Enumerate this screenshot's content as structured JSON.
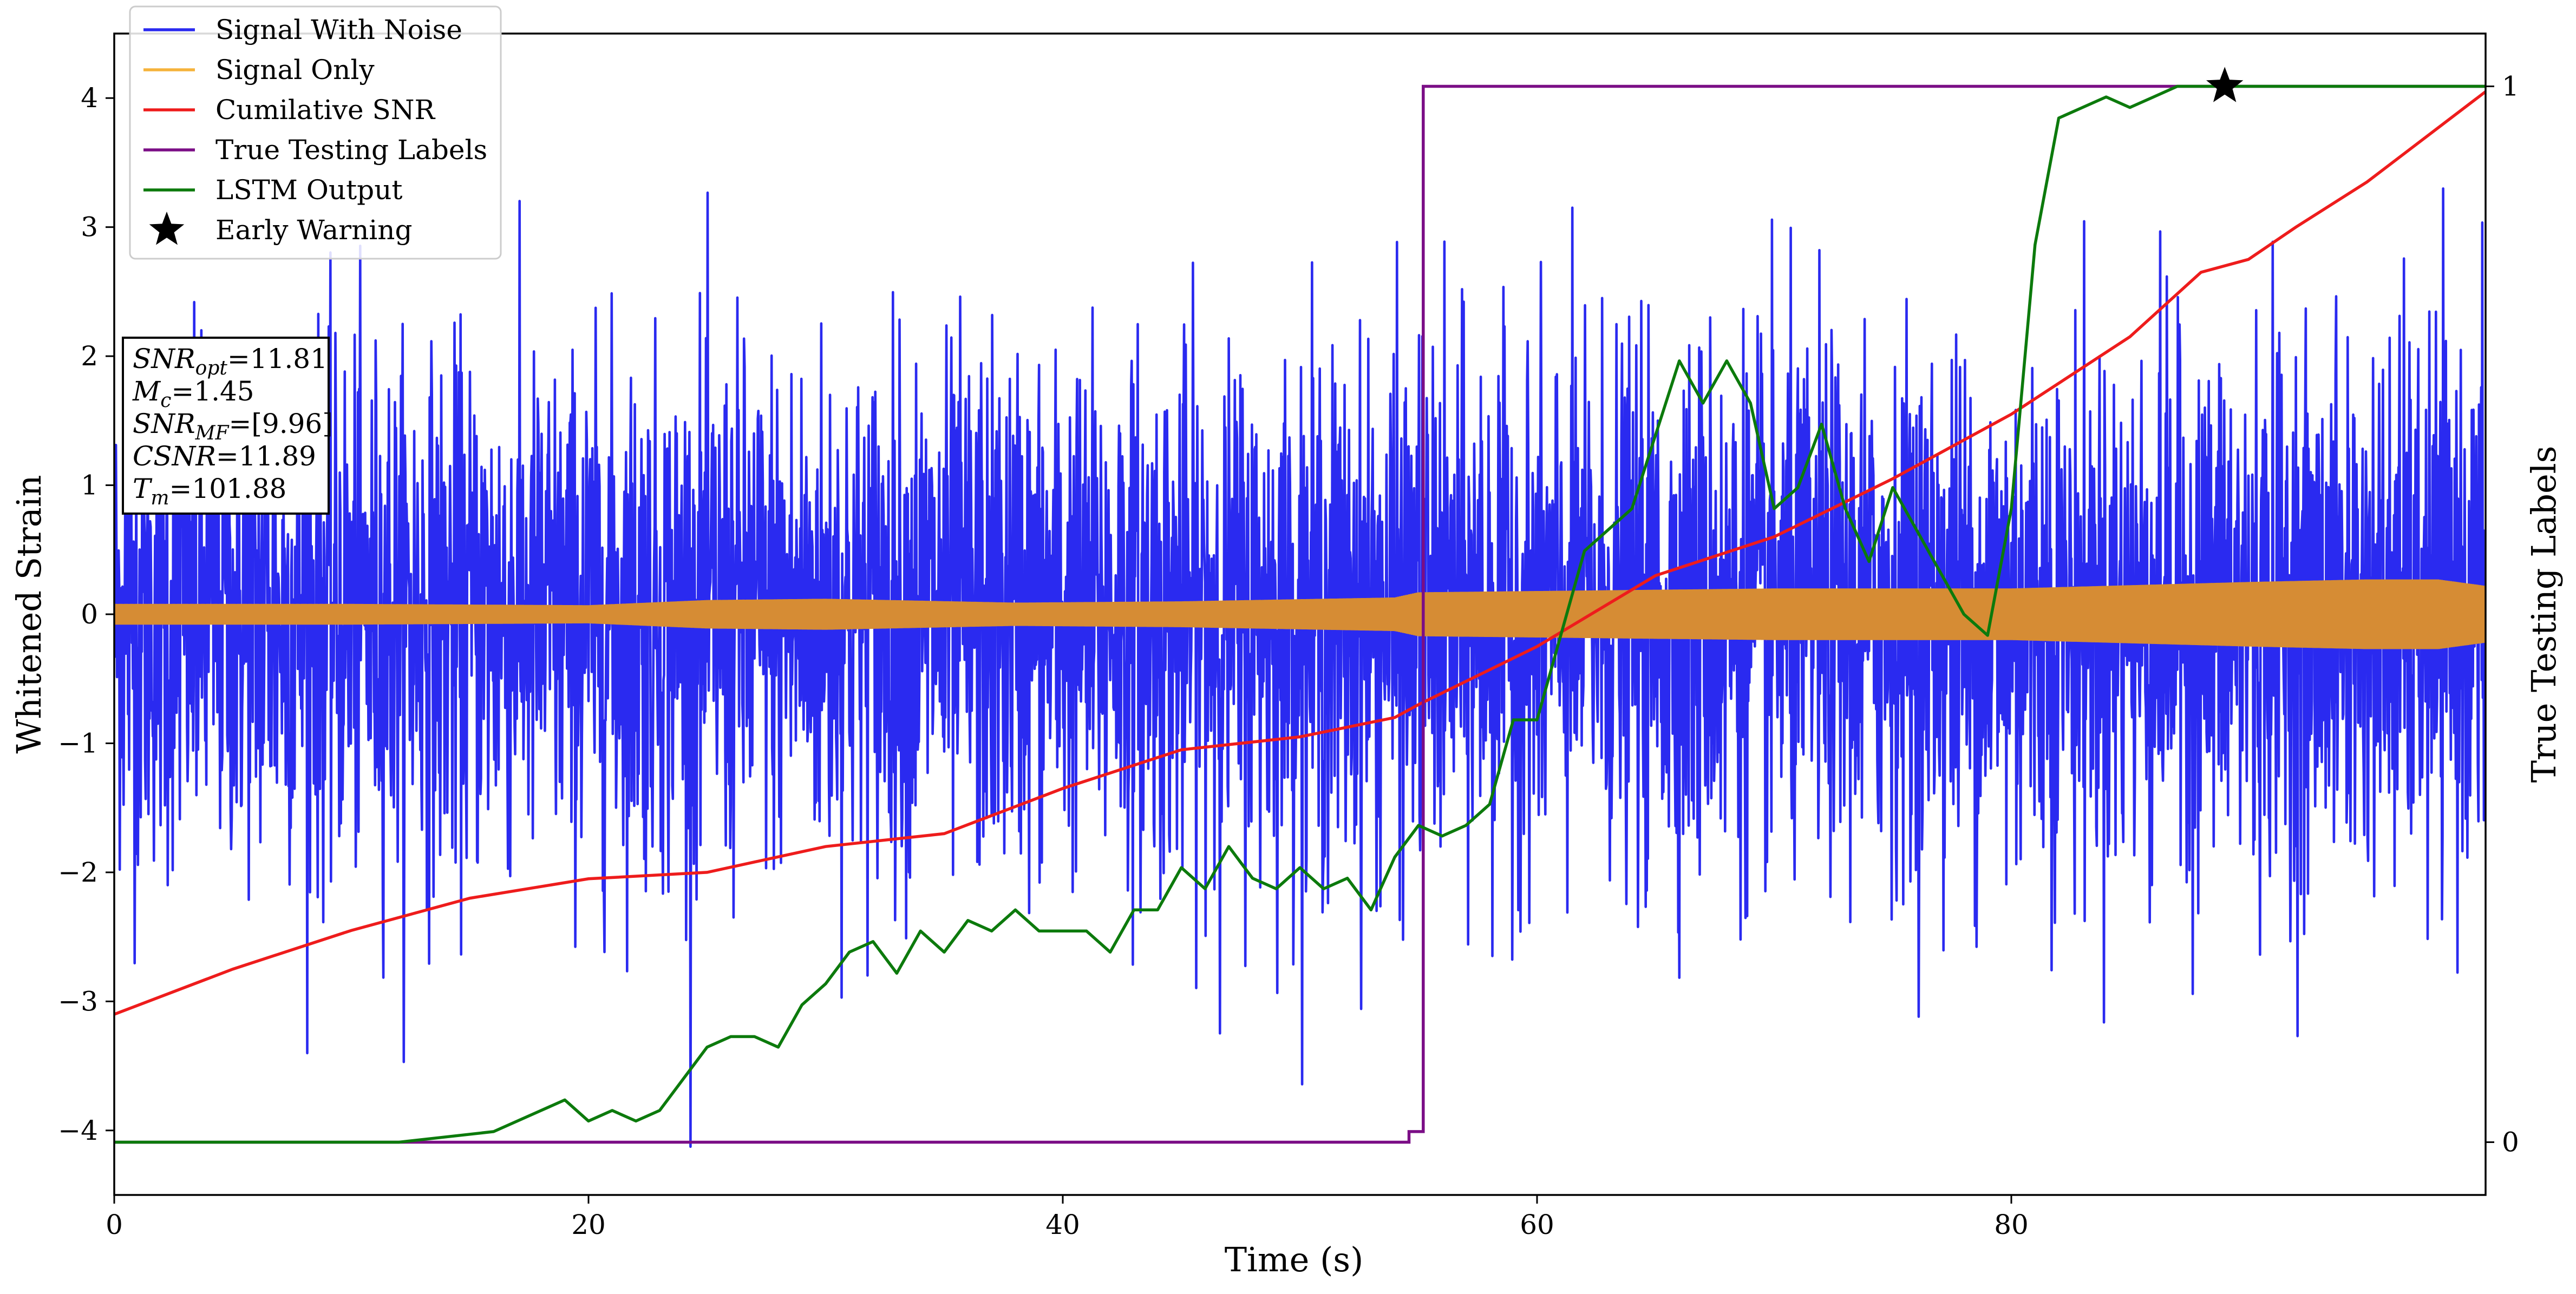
{
  "chart_data": {
    "type": "line",
    "xlabel": "Time (s)",
    "ylabel": "Whitened Strain",
    "y2label": "True Testing Labels",
    "xlim": [
      0,
      100
    ],
    "ylim": [
      -4.5,
      4.5
    ],
    "y2lim": [
      -0.05,
      1.05
    ],
    "xticks": [
      "0",
      "20",
      "40",
      "60",
      "80"
    ],
    "yticks": [
      "−4",
      "−3",
      "−2",
      "−1",
      "0",
      "1",
      "2",
      "3",
      "4"
    ],
    "y2ticks": [
      "0",
      "1"
    ],
    "grid": false,
    "legend_position": "top-left",
    "colors": {
      "noise": "#2a2af0",
      "signal": "#d68c34",
      "signal_legend": "#f5b33c",
      "csnr": "#ee1c1c",
      "labels": "#7b0e86",
      "lstm": "#0c7a0c",
      "warning": "#000000"
    },
    "legend": [
      {
        "key": "noise",
        "label": "Signal With Noise"
      },
      {
        "key": "signal",
        "label": "Signal Only"
      },
      {
        "key": "csnr",
        "label": "Cumilative SNR"
      },
      {
        "key": "labels",
        "label": "True Testing Labels"
      },
      {
        "key": "lstm",
        "label": "LSTM Output"
      },
      {
        "key": "warning",
        "label": "Early Warning"
      }
    ],
    "annotation_lines": [
      {
        "sym": "SNR",
        "sub": "opt",
        "val": "=11.81"
      },
      {
        "sym": "M",
        "sub": "c",
        "val": "=1.45"
      },
      {
        "sym": "SNR",
        "sub": "MF",
        "val": "=[9.96]"
      },
      {
        "sym": "CSNR",
        "sub": "",
        "val": "=11.89"
      },
      {
        "sym": "T",
        "sub": "m",
        "val": "=101.88"
      }
    ],
    "series": [
      {
        "name": "Signal With Noise",
        "axis": "left",
        "note_envelope": "dense noise, approx ±1 sigma band",
        "sigma": 1.0
      },
      {
        "name": "Signal Only",
        "axis": "left",
        "envelope": {
          "x": [
            0,
            10,
            20,
            25,
            30,
            38,
            45,
            54,
            55,
            60,
            70,
            80,
            90,
            95,
            98,
            100
          ],
          "amp": [
            0.08,
            0.08,
            0.07,
            0.11,
            0.12,
            0.09,
            0.1,
            0.13,
            0.17,
            0.18,
            0.2,
            0.2,
            0.25,
            0.27,
            0.27,
            0.22
          ]
        }
      },
      {
        "name": "Cumilative SNR",
        "axis": "left",
        "x": [
          0,
          5,
          10,
          15,
          20,
          25,
          30,
          35,
          40,
          45,
          50,
          54,
          55,
          60,
          65,
          70,
          75,
          80,
          85,
          88,
          90,
          92,
          95,
          100
        ],
        "y": [
          -3.1,
          -2.75,
          -2.45,
          -2.2,
          -2.05,
          -2.0,
          -1.8,
          -1.7,
          -1.35,
          -1.05,
          -0.95,
          -0.8,
          -0.7,
          -0.25,
          0.3,
          0.6,
          1.05,
          1.55,
          2.15,
          2.65,
          2.75,
          3.0,
          3.35,
          4.05
        ]
      },
      {
        "name": "True Testing Labels",
        "axis": "right",
        "x": [
          0,
          54.6,
          54.6,
          55.2,
          55.2,
          100
        ],
        "y": [
          0,
          0,
          0.01,
          0.01,
          1,
          1
        ]
      },
      {
        "name": "LSTM Output",
        "axis": "right",
        "x": [
          0,
          10,
          12,
          14,
          16,
          17,
          18,
          19,
          20,
          21,
          22,
          23,
          24,
          25,
          26,
          27,
          28,
          29,
          30,
          31,
          32,
          33,
          34,
          35,
          36,
          37,
          38,
          39,
          40,
          41,
          42,
          43,
          44,
          45,
          46,
          47,
          48,
          49,
          50,
          51,
          52,
          53,
          54,
          55,
          56,
          57,
          58,
          59,
          60,
          61,
          62,
          63,
          64,
          65,
          66,
          67,
          68,
          69,
          70,
          71,
          72,
          73,
          74,
          75,
          76,
          77,
          78,
          79,
          80,
          81,
          82,
          83,
          84,
          85,
          86,
          87,
          88,
          89,
          90,
          100
        ],
        "y": [
          0,
          0,
          0.0,
          0.005,
          0.01,
          0.02,
          0.03,
          0.04,
          0.02,
          0.03,
          0.02,
          0.03,
          0.06,
          0.09,
          0.1,
          0.1,
          0.09,
          0.13,
          0.15,
          0.18,
          0.19,
          0.16,
          0.2,
          0.18,
          0.21,
          0.2,
          0.22,
          0.2,
          0.2,
          0.2,
          0.18,
          0.22,
          0.22,
          0.26,
          0.24,
          0.28,
          0.25,
          0.24,
          0.26,
          0.24,
          0.25,
          0.22,
          0.27,
          0.3,
          0.29,
          0.3,
          0.32,
          0.4,
          0.4,
          0.48,
          0.56,
          0.58,
          0.6,
          0.67,
          0.74,
          0.7,
          0.74,
          0.7,
          0.6,
          0.62,
          0.68,
          0.6,
          0.55,
          0.62,
          0.58,
          0.54,
          0.5,
          0.48,
          0.6,
          0.85,
          0.97,
          0.98,
          0.99,
          0.98,
          0.99,
          1.0,
          1.0,
          1.0,
          1.0,
          1.0
        ]
      },
      {
        "name": "Early Warning",
        "axis": "right",
        "type": "marker",
        "x": 89.0,
        "y": 1.0
      }
    ]
  }
}
